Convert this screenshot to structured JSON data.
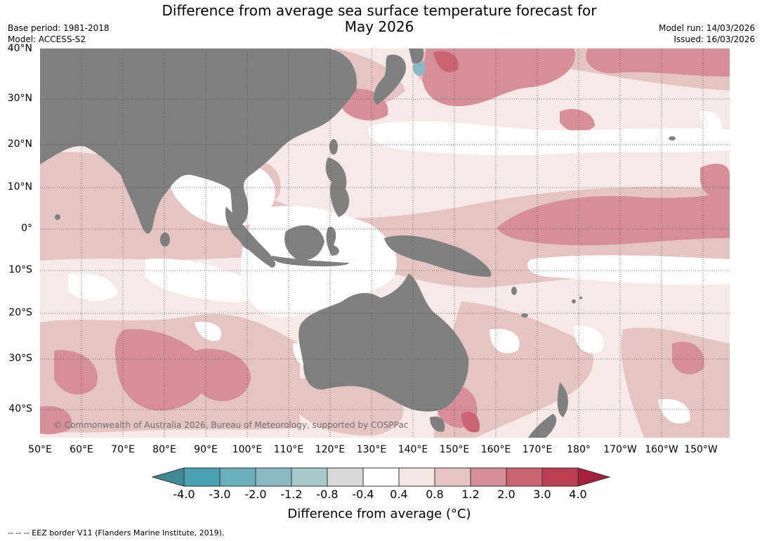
{
  "title": {
    "line1": "Difference from average sea surface temperature forecast for",
    "line2": "May 2026"
  },
  "meta": {
    "base_period": "Base period: 1981-2018",
    "model": "Model: ACCESS-S2",
    "model_run": "Model run: 14/03/2026",
    "issued": "Issued: 16/03/2026"
  },
  "axes": {
    "lat_labels": [
      "40°N",
      "30°N",
      "20°N",
      "10°N",
      "0°",
      "10°S",
      "20°S",
      "30°S",
      "40°S"
    ],
    "lon_labels": [
      "50°E",
      "60°E",
      "70°E",
      "80°E",
      "90°E",
      "100°E",
      "110°E",
      "120°E",
      "130°E",
      "140°E",
      "150°E",
      "160°E",
      "170°E",
      "180°",
      "170°W",
      "160°W",
      "150°W"
    ]
  },
  "copyright": "© Commonwealth of Australia 2026, Bureau of Meteorology, supported by COSPPac",
  "colorbar": {
    "title": "Difference from average (°C)",
    "ticks": [
      "-4.0",
      "-3.0",
      "-2.0",
      "-1.2",
      "-0.8",
      "-0.4",
      "0.4",
      "0.8",
      "1.2",
      "2.0",
      "3.0",
      "4.0"
    ],
    "colors": [
      "#3d8a94",
      "#4aa1b2",
      "#6bafbc",
      "#8ab8c3",
      "#a9c8cc",
      "#d9d9d9",
      "#ffffff",
      "#f5e6e5",
      "#e6c4c2",
      "#d68f97",
      "#c96470",
      "#bf3f52",
      "#a6203a"
    ]
  },
  "footer": "--  --  -- EEZ border V11 (Flanders Marine Institute, 2019).",
  "colors": {
    "land": "#808080",
    "ocean_base": "#f6e9e8",
    "anomaly_neutral": "#ffffff",
    "anomaly_0_8": "#e6c4c2",
    "anomaly_1_2": "#d68f97",
    "anomaly_2_0": "#c96470",
    "anomaly_negative": "#8ab8c3"
  }
}
